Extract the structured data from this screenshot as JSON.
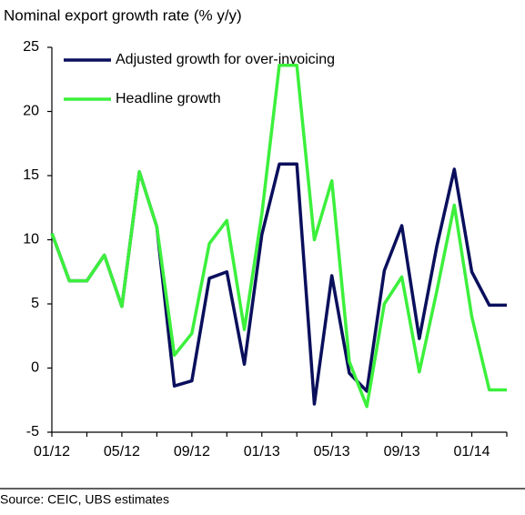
{
  "chart_data": {
    "type": "line",
    "title": "Nominal export growth rate (%  y/y)",
    "source": "Source: CEIC, UBS estimates",
    "categories": [
      "01/12",
      null,
      null,
      null,
      "05/12",
      null,
      null,
      null,
      "09/12",
      null,
      null,
      null,
      "01/13",
      null,
      null,
      null,
      "05/13",
      null,
      null,
      null,
      "09/13",
      null,
      null,
      null,
      "01/14",
      null,
      null
    ],
    "series": [
      {
        "name": "Adjusted growth for over-invoicing",
        "color": "#0a0f5c",
        "values": [
          10.5,
          6.8,
          6.8,
          8.8,
          4.8,
          15.3,
          11,
          -1.4,
          -1,
          7,
          7.5,
          0.3,
          10.4,
          15.9,
          15.9,
          -2.8,
          7.2,
          -0.4,
          -1.8,
          7.6,
          11.1,
          2.3,
          9.5,
          15.5,
          7.5,
          4.9,
          4.9
        ]
      },
      {
        "name": "Headline growth",
        "color": "#3cf03c",
        "values": [
          10.5,
          6.8,
          6.8,
          8.8,
          4.8,
          15.3,
          11,
          1,
          2.7,
          9.7,
          11.5,
          3,
          12,
          23.6,
          23.6,
          10,
          14.6,
          0.5,
          -3,
          5,
          7.1,
          -0.3,
          6,
          12.7,
          4,
          -1.7,
          -1.7
        ]
      }
    ],
    "ylim": [
      -5,
      25
    ],
    "yticks": [
      -5,
      0,
      5,
      10,
      15,
      20,
      25
    ],
    "grid": false
  }
}
